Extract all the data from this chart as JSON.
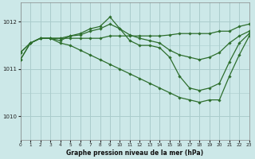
{
  "title": "Graphe pression niveau de la mer (hPa)",
  "bg_color": "#cce8e8",
  "grid_color": "#aacccc",
  "line_color": "#2d6e2d",
  "xlim": [
    0,
    23
  ],
  "ylim": [
    1009.5,
    1012.4
  ],
  "yticks": [
    1010,
    1011,
    1012
  ],
  "xticks": [
    0,
    1,
    2,
    3,
    4,
    5,
    6,
    7,
    8,
    9,
    10,
    11,
    12,
    13,
    14,
    15,
    16,
    17,
    18,
    19,
    20,
    21,
    22,
    23
  ],
  "series": [
    [
      1011.35,
      1011.55,
      1011.65,
      1011.65,
      1011.65,
      1011.65,
      1011.65,
      1011.65,
      1011.65,
      1011.7,
      1011.7,
      1011.7,
      1011.7,
      1011.7,
      1011.7,
      1011.72,
      1011.75,
      1011.75,
      1011.75,
      1011.75,
      1011.8,
      1011.8,
      1011.9,
      1011.95
    ],
    [
      1011.35,
      1011.55,
      1011.65,
      1011.65,
      1011.65,
      1011.7,
      1011.72,
      1011.8,
      1011.85,
      1011.95,
      1011.85,
      1011.72,
      1011.65,
      1011.6,
      1011.55,
      1011.4,
      1011.3,
      1011.25,
      1011.2,
      1011.25,
      1011.35,
      1011.55,
      1011.7,
      1011.8
    ],
    [
      1011.2,
      1011.55,
      1011.65,
      1011.65,
      1011.6,
      1011.7,
      1011.75,
      1011.85,
      1011.9,
      1012.1,
      1011.85,
      1011.6,
      1011.5,
      1011.5,
      1011.45,
      1011.25,
      1010.85,
      1010.6,
      1010.55,
      1010.6,
      1010.7,
      1011.15,
      1011.55,
      1011.75
    ],
    [
      1011.2,
      1011.55,
      1011.65,
      1011.65,
      1011.55,
      1011.5,
      1011.4,
      1011.3,
      1011.2,
      1011.1,
      1011.0,
      1010.9,
      1010.8,
      1010.7,
      1010.6,
      1010.5,
      1010.4,
      1010.35,
      1010.3,
      1010.35,
      1010.35,
      1010.85,
      1011.3,
      1011.7
    ]
  ]
}
